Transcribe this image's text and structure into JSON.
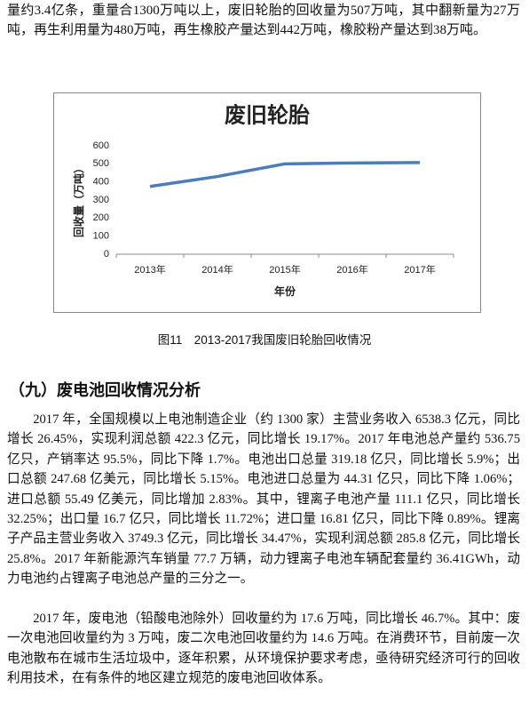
{
  "intro": "量约3.4亿条，重量合1300万吨以上，废旧轮胎的回收量为507万吨，其中翻新量为27万吨，再生利用量为480万吨，再生橡胶产量达到442万吨，橡胶粉产量达到38万吨。",
  "chart_data": {
    "type": "line",
    "title": "废旧轮胎",
    "x_label": "年份",
    "y_label": "回收量（万吨）",
    "categories": [
      "2013年",
      "2014年",
      "2015年",
      "2016年",
      "2017年"
    ],
    "values": [
      375,
      430,
      500,
      505,
      507
    ],
    "color": "#4a7ebb",
    "ylim": [
      0,
      600
    ],
    "yticks": [
      0,
      100,
      200,
      300,
      400,
      500,
      600
    ],
    "grid": false
  },
  "caption": "图11　2013-2017我国废旧轮胎回收情况",
  "heading": "（九）废电池回收情况分析",
  "paragraphs": [
    "2017 年，全国规模以上电池制造企业（约 1300 家）主营业务收入 6538.3 亿元，同比增长 26.45%，实现利润总额 422.3 亿元，同比增长 19.17%。2017 年电池总产量约 536.75 亿只，产销率达 95.5%，同比下降 1.7%。电池出口总量 319.18 亿只，同比增长 5.9%；出口总额 247.68 亿美元，同比增长 5.15%。电池进口总量为 44.31 亿只，同比下降 1.06%；进口总额 55.49 亿美元，同比增加 2.83%。其中，锂离子电池产量 111.1 亿只，同比增长 32.25%；出口量 16.7 亿只，同比增长 11.72%；进口量 16.81 亿只，同比下降 0.89%。锂离子产品主营业务收入 3749.3 亿元，同比增长 34.47%，实现利润总额 285.8 亿元，同比增长 25.8%。2017 年新能源汽车销量 77.7 万辆，动力锂离子电池车辆配套量约 36.41GWh，动力电池约占锂离子电池总产量的三分之一。",
    "2017 年，废电池（铅酸电池除外）回收量约为 17.6 万吨，同比增长 46.7%。其中：废一次电池回收量约为 3 万吨，废二次电池回收量约为 14.6 万吨。在消费环节，目前废一次电池散布在城市生活垃圾中，逐年积累，从环境保护要求考虑，亟待研究经济可行的回收利用技术，在有条件的地区建立规范的废电池回收体系。"
  ]
}
